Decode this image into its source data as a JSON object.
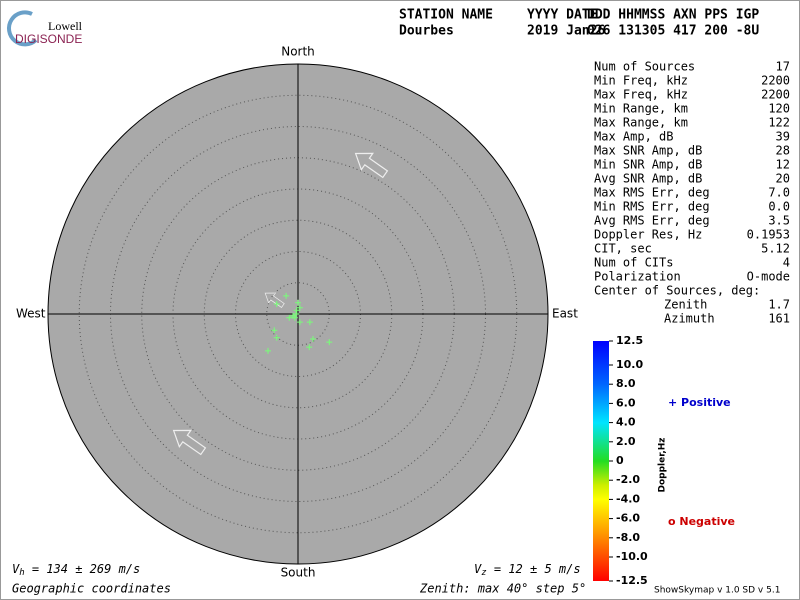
{
  "header": {
    "logo_top": "Lowell",
    "logo_bottom": "DIGISONDE",
    "labels": [
      "STATION NAME",
      "YYYY DATE",
      "DDD HHMMSS AXN PPS IGP"
    ],
    "values": [
      "Dourbes",
      "2019 Jan26",
      "026 131305 417 200 -8U"
    ]
  },
  "chart_data": {
    "type": "polar-scatter",
    "directions": {
      "north": "North",
      "south": "South",
      "east": "East",
      "west": "West"
    },
    "rlim": [
      0,
      40
    ],
    "rticks": [
      5,
      10,
      15,
      20,
      25,
      30,
      35
    ],
    "series": [
      {
        "name": "Positive",
        "color": "#77ff77",
        "x": [
          -1.9,
          -3.4,
          0,
          -1.4,
          -0.5,
          0.3,
          1.9,
          -3.8,
          -3.4,
          -4.8,
          2.4,
          1.8,
          5.0,
          -0.2,
          -0.8,
          0.3,
          -0.3
        ],
        "y": [
          2.9,
          1.6,
          1.8,
          -0.6,
          -0.6,
          -1.3,
          -1.3,
          -2.6,
          -3.8,
          -5.9,
          -4.0,
          -5.3,
          -4.5,
          0.6,
          -0.3,
          1.0,
          0
        ]
      }
    ],
    "colorbar": {
      "label": "Doppler,Hz",
      "lim": [
        -12.5,
        12.5
      ],
      "ticks": [
        12.5,
        {
          "value": 10,
          "label": "10.0"
        },
        {
          "value": 8,
          "label": "8.0"
        },
        {
          "value": 6,
          "label": "6.0"
        },
        {
          "value": 4,
          "label": "4.0"
        },
        {
          "value": 2,
          "label": "2.0"
        },
        0,
        {
          "value": -2,
          "label": "-2.0"
        },
        {
          "value": -4,
          "label": "-4.0"
        },
        {
          "value": -6,
          "label": "-6.0"
        },
        {
          "value": -8,
          "label": "-8.0"
        },
        {
          "value": -10,
          "label": "-10.0"
        },
        -12.5
      ]
    },
    "legend": {
      "positive": "+ Positive",
      "negative": "o Negative"
    }
  },
  "stats": {
    "rows": [
      [
        "Num of Sources",
        "17"
      ],
      [
        "Min Freq, kHz",
        "2200"
      ],
      [
        "Max Freq, kHz",
        "2200"
      ],
      [
        "Min Range, km",
        "120"
      ],
      [
        "Max Range, km",
        "122"
      ],
      [
        "Max Amp, dB",
        "39"
      ],
      [
        "Max SNR Amp, dB",
        "28"
      ],
      [
        "Min SNR Amp, dB",
        "12"
      ],
      [
        "Avg SNR Amp, dB",
        "20"
      ],
      [
        "Max RMS Err, deg",
        "7.0"
      ],
      [
        "Min RMS Err, deg",
        "0.0"
      ],
      [
        "Avg RMS Err, deg",
        "3.5"
      ],
      [
        "Doppler Res, Hz",
        "0.1953"
      ],
      [
        "CIT, sec",
        "5.12"
      ],
      [
        "Num of CITs",
        "4"
      ],
      [
        "Polarization",
        "O-mode"
      ]
    ],
    "center_title": "Center of Sources, deg:",
    "center_rows": [
      [
        "Zenith",
        "1.7"
      ],
      [
        "Azimuth",
        "161"
      ]
    ]
  },
  "footer": {
    "vh_symbol": "V",
    "vh_sub": "h",
    "vh_text": " = 134 ± 269 m/s",
    "vz_symbol": "V",
    "vz_sub": "z",
    "vz_text": " = 12 ± 5 m/s",
    "coords": "Geographic coordinates",
    "zenith": "Zenith: max 40°  step 5°",
    "version": "ShowSkymap v 1.0  SD v 5.1"
  }
}
